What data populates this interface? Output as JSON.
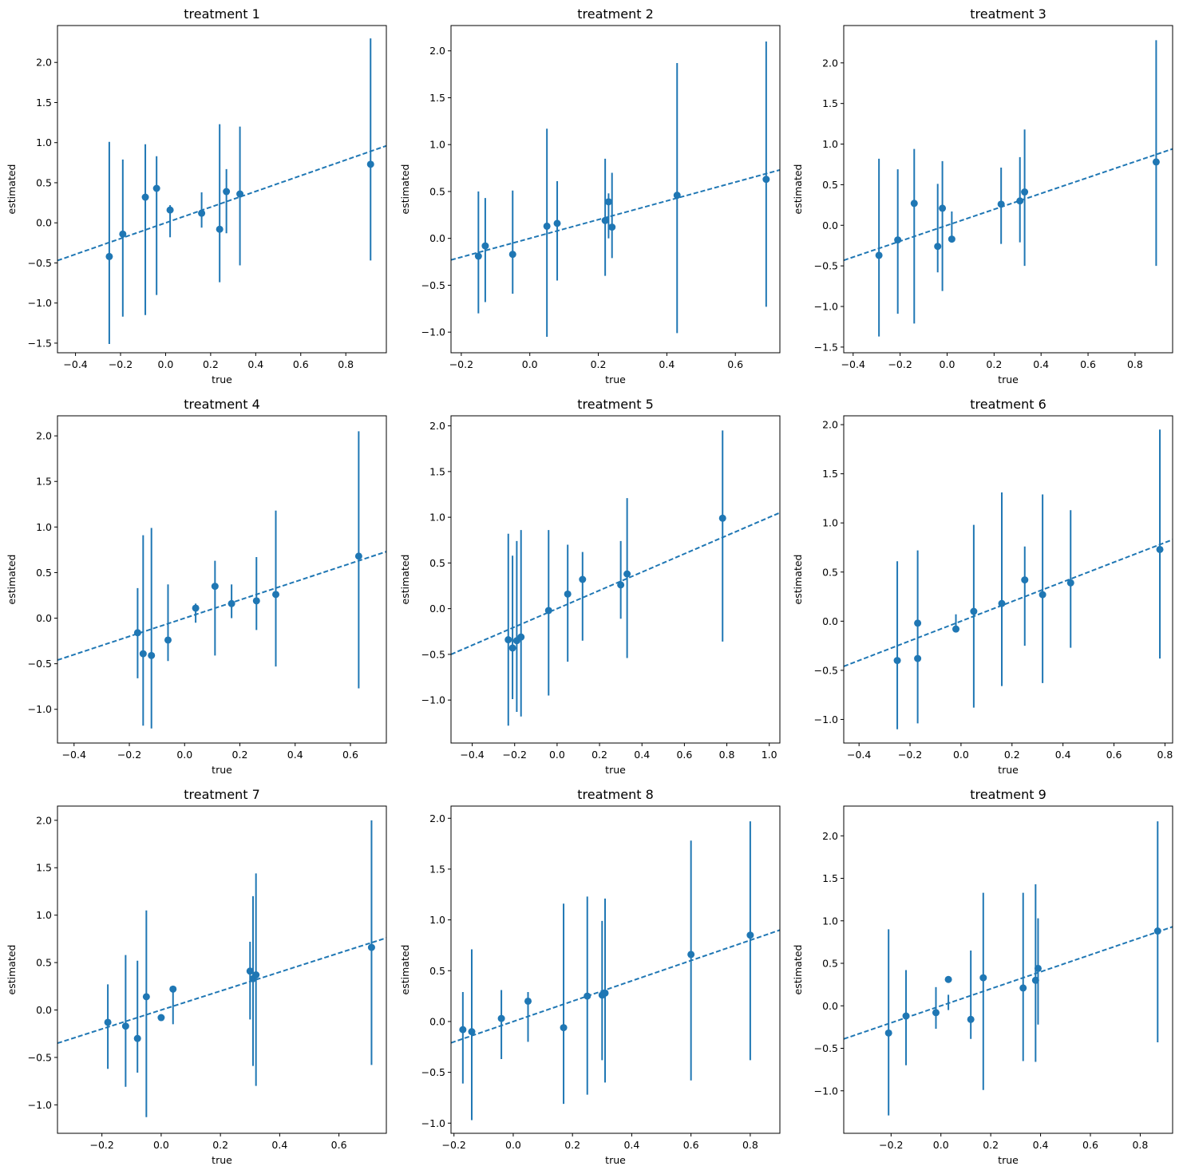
{
  "figure": {
    "width": 1477,
    "height": 1471
  },
  "colors": {
    "marker": "#1f77b4",
    "line": "#1f77b4",
    "axis": "#000000"
  },
  "chart_data": [
    {
      "type": "scatter",
      "title": "treatment 1",
      "xlabel": "true",
      "ylabel": "estimated",
      "xlim": [
        -0.48,
        0.98
      ],
      "ylim": [
        -1.62,
        2.46
      ],
      "xticks": [
        -0.4,
        -0.2,
        0.0,
        0.2,
        0.4,
        0.6,
        0.8
      ],
      "yticks": [
        -1.5,
        -1.0,
        -0.5,
        0.0,
        0.5,
        1.0,
        1.5,
        2.0
      ],
      "fit_line": {
        "slope": 0.98,
        "intercept": 0.0,
        "style": "dashed"
      },
      "points": [
        {
          "x": -0.25,
          "y": -0.42,
          "lo": -1.51,
          "hi": 1.01
        },
        {
          "x": -0.19,
          "y": -0.14,
          "lo": -1.17,
          "hi": 0.79
        },
        {
          "x": -0.09,
          "y": 0.32,
          "lo": -1.15,
          "hi": 0.98
        },
        {
          "x": -0.04,
          "y": 0.43,
          "lo": -0.9,
          "hi": 0.83
        },
        {
          "x": 0.02,
          "y": 0.16,
          "lo": -0.18,
          "hi": 0.22
        },
        {
          "x": 0.16,
          "y": 0.12,
          "lo": -0.06,
          "hi": 0.38
        },
        {
          "x": 0.24,
          "y": -0.08,
          "lo": -0.74,
          "hi": 1.23
        },
        {
          "x": 0.27,
          "y": 0.39,
          "lo": -0.13,
          "hi": 0.67
        },
        {
          "x": 0.33,
          "y": 0.36,
          "lo": -0.53,
          "hi": 1.2
        },
        {
          "x": 0.91,
          "y": 0.73,
          "lo": -0.47,
          "hi": 2.3
        }
      ]
    },
    {
      "type": "scatter",
      "title": "treatment 2",
      "xlabel": "true",
      "ylabel": "estimated",
      "xlim": [
        -0.23,
        0.73
      ],
      "ylim": [
        -1.22,
        2.27
      ],
      "xticks": [
        -0.2,
        0.0,
        0.2,
        0.4,
        0.6
      ],
      "yticks": [
        -1.0,
        -0.5,
        0.0,
        0.5,
        1.0,
        1.5,
        2.0
      ],
      "fit_line": {
        "slope": 1.0,
        "intercept": 0.0,
        "style": "dashed"
      },
      "points": [
        {
          "x": -0.15,
          "y": -0.19,
          "lo": -0.8,
          "hi": 0.5
        },
        {
          "x": -0.13,
          "y": -0.08,
          "lo": -0.68,
          "hi": 0.43
        },
        {
          "x": -0.05,
          "y": -0.17,
          "lo": -0.59,
          "hi": 0.51
        },
        {
          "x": 0.05,
          "y": 0.13,
          "lo": -1.05,
          "hi": 1.17
        },
        {
          "x": 0.08,
          "y": 0.16,
          "lo": -0.45,
          "hi": 0.61
        },
        {
          "x": 0.22,
          "y": 0.19,
          "lo": -0.4,
          "hi": 0.85
        },
        {
          "x": 0.23,
          "y": 0.39,
          "lo": 0.0,
          "hi": 0.48
        },
        {
          "x": 0.24,
          "y": 0.12,
          "lo": -0.21,
          "hi": 0.7
        },
        {
          "x": 0.43,
          "y": 0.46,
          "lo": -1.01,
          "hi": 1.87
        },
        {
          "x": 0.69,
          "y": 0.63,
          "lo": -0.73,
          "hi": 2.1
        }
      ]
    },
    {
      "type": "scatter",
      "title": "treatment 3",
      "xlabel": "true",
      "ylabel": "estimated",
      "xlim": [
        -0.44,
        0.96
      ],
      "ylim": [
        -1.57,
        2.46
      ],
      "xticks": [
        -0.4,
        -0.2,
        0.0,
        0.2,
        0.4,
        0.6,
        0.8
      ],
      "yticks": [
        -1.5,
        -1.0,
        -0.5,
        0.0,
        0.5,
        1.0,
        1.5,
        2.0
      ],
      "fit_line": {
        "slope": 0.98,
        "intercept": 0.0,
        "style": "dashed"
      },
      "points": [
        {
          "x": -0.29,
          "y": -0.37,
          "lo": -1.37,
          "hi": 0.82
        },
        {
          "x": -0.21,
          "y": -0.18,
          "lo": -1.09,
          "hi": 0.69
        },
        {
          "x": -0.14,
          "y": 0.27,
          "lo": -1.21,
          "hi": 0.94
        },
        {
          "x": -0.04,
          "y": -0.26,
          "lo": -0.58,
          "hi": 0.51
        },
        {
          "x": -0.02,
          "y": 0.21,
          "lo": -0.81,
          "hi": 0.79
        },
        {
          "x": 0.02,
          "y": -0.17,
          "lo": -0.17,
          "hi": 0.17
        },
        {
          "x": 0.23,
          "y": 0.26,
          "lo": -0.23,
          "hi": 0.71
        },
        {
          "x": 0.31,
          "y": 0.3,
          "lo": -0.21,
          "hi": 0.84
        },
        {
          "x": 0.33,
          "y": 0.41,
          "lo": -0.5,
          "hi": 1.18
        },
        {
          "x": 0.89,
          "y": 0.78,
          "lo": -0.5,
          "hi": 2.28
        }
      ]
    },
    {
      "type": "scatter",
      "title": "treatment 4",
      "xlabel": "true",
      "ylabel": "estimated",
      "xlim": [
        -0.46,
        0.73
      ],
      "ylim": [
        -1.37,
        2.22
      ],
      "xticks": [
        -0.4,
        -0.2,
        0.0,
        0.2,
        0.4,
        0.6
      ],
      "yticks": [
        -1.0,
        -0.5,
        0.0,
        0.5,
        1.0,
        1.5,
        2.0
      ],
      "fit_line": {
        "slope": 1.0,
        "intercept": 0.0,
        "style": "dashed"
      },
      "points": [
        {
          "x": -0.17,
          "y": -0.16,
          "lo": -0.66,
          "hi": 0.33
        },
        {
          "x": -0.15,
          "y": -0.39,
          "lo": -1.18,
          "hi": 0.91
        },
        {
          "x": -0.12,
          "y": -0.41,
          "lo": -1.21,
          "hi": 0.99
        },
        {
          "x": -0.06,
          "y": -0.24,
          "lo": -0.47,
          "hi": 0.37
        },
        {
          "x": 0.04,
          "y": 0.11,
          "lo": -0.05,
          "hi": 0.16
        },
        {
          "x": 0.11,
          "y": 0.35,
          "lo": -0.41,
          "hi": 0.63
        },
        {
          "x": 0.17,
          "y": 0.16,
          "lo": 0.0,
          "hi": 0.37
        },
        {
          "x": 0.26,
          "y": 0.19,
          "lo": -0.13,
          "hi": 0.67
        },
        {
          "x": 0.33,
          "y": 0.26,
          "lo": -0.53,
          "hi": 1.18
        },
        {
          "x": 0.63,
          "y": 0.68,
          "lo": -0.77,
          "hi": 2.05
        }
      ]
    },
    {
      "type": "scatter",
      "title": "treatment 5",
      "xlabel": "true",
      "ylabel": "estimated",
      "xlim": [
        -0.5,
        1.05
      ],
      "ylim": [
        -1.47,
        2.11
      ],
      "xticks": [
        -0.4,
        -0.2,
        0.0,
        0.2,
        0.4,
        0.6,
        0.8,
        1.0
      ],
      "yticks": [
        -1.0,
        -0.5,
        0.0,
        0.5,
        1.0,
        1.5,
        2.0
      ],
      "fit_line": {
        "slope": 1.0,
        "intercept": 0.0,
        "style": "dashed"
      },
      "points": [
        {
          "x": -0.23,
          "y": -0.34,
          "lo": -1.28,
          "hi": 0.82
        },
        {
          "x": -0.21,
          "y": -0.43,
          "lo": -0.99,
          "hi": 0.58
        },
        {
          "x": -0.19,
          "y": -0.35,
          "lo": -1.13,
          "hi": 0.74
        },
        {
          "x": -0.17,
          "y": -0.31,
          "lo": -1.18,
          "hi": 0.86
        },
        {
          "x": -0.04,
          "y": -0.02,
          "lo": -0.95,
          "hi": 0.86
        },
        {
          "x": 0.05,
          "y": 0.16,
          "lo": -0.58,
          "hi": 0.7
        },
        {
          "x": 0.12,
          "y": 0.32,
          "lo": -0.35,
          "hi": 0.62
        },
        {
          "x": 0.3,
          "y": 0.26,
          "lo": -0.11,
          "hi": 0.74
        },
        {
          "x": 0.33,
          "y": 0.38,
          "lo": -0.54,
          "hi": 1.21
        },
        {
          "x": 0.78,
          "y": 0.99,
          "lo": -0.36,
          "hi": 1.95
        }
      ]
    },
    {
      "type": "scatter",
      "title": "treatment 6",
      "xlabel": "true",
      "ylabel": "estimated",
      "xlim": [
        -0.46,
        0.83
      ],
      "ylim": [
        -1.24,
        2.09
      ],
      "xticks": [
        -0.4,
        -0.2,
        0.0,
        0.2,
        0.4,
        0.6,
        0.8
      ],
      "yticks": [
        -1.0,
        -0.5,
        0.0,
        0.5,
        1.0,
        1.5,
        2.0
      ],
      "fit_line": {
        "slope": 1.0,
        "intercept": 0.0,
        "style": "dashed"
      },
      "points": [
        {
          "x": -0.25,
          "y": -0.4,
          "lo": -1.1,
          "hi": 0.61
        },
        {
          "x": -0.17,
          "y": -0.02,
          "lo": -0.01,
          "hi": 0.72
        },
        {
          "x": -0.17,
          "y": -0.38,
          "lo": -1.04,
          "hi": 0.0
        },
        {
          "x": -0.02,
          "y": -0.08,
          "lo": -0.08,
          "hi": 0.07
        },
        {
          "x": 0.05,
          "y": 0.1,
          "lo": -0.88,
          "hi": 0.98
        },
        {
          "x": 0.16,
          "y": 0.18,
          "lo": -0.66,
          "hi": 1.31
        },
        {
          "x": 0.25,
          "y": 0.42,
          "lo": -0.25,
          "hi": 0.76
        },
        {
          "x": 0.32,
          "y": 0.27,
          "lo": -0.63,
          "hi": 1.29
        },
        {
          "x": 0.43,
          "y": 0.39,
          "lo": -0.27,
          "hi": 1.13
        },
        {
          "x": 0.78,
          "y": 0.73,
          "lo": -0.38,
          "hi": 1.95
        }
      ]
    },
    {
      "type": "scatter",
      "title": "treatment 7",
      "xlabel": "true",
      "ylabel": "estimated",
      "xlim": [
        -0.35,
        0.76
      ],
      "ylim": [
        -1.3,
        2.15
      ],
      "xticks": [
        -0.2,
        0.0,
        0.2,
        0.4,
        0.6
      ],
      "yticks": [
        -1.0,
        -0.5,
        0.0,
        0.5,
        1.0,
        1.5,
        2.0
      ],
      "fit_line": {
        "slope": 1.0,
        "intercept": 0.0,
        "style": "dashed"
      },
      "points": [
        {
          "x": -0.18,
          "y": -0.13,
          "lo": -0.62,
          "hi": 0.27
        },
        {
          "x": -0.12,
          "y": -0.17,
          "lo": -0.81,
          "hi": 0.58
        },
        {
          "x": -0.08,
          "y": -0.3,
          "lo": -0.66,
          "hi": 0.52
        },
        {
          "x": -0.05,
          "y": 0.14,
          "lo": -1.13,
          "hi": 1.05
        },
        {
          "x": 0.0,
          "y": -0.08,
          "lo": -0.08,
          "hi": -0.08
        },
        {
          "x": 0.04,
          "y": 0.22,
          "lo": -0.15,
          "hi": 0.22
        },
        {
          "x": 0.3,
          "y": 0.41,
          "lo": -0.1,
          "hi": 0.72
        },
        {
          "x": 0.31,
          "y": 0.33,
          "lo": -0.59,
          "hi": 1.2
        },
        {
          "x": 0.32,
          "y": 0.37,
          "lo": -0.8,
          "hi": 1.44
        },
        {
          "x": 0.71,
          "y": 0.66,
          "lo": -0.58,
          "hi": 2.0
        }
      ]
    },
    {
      "type": "scatter",
      "title": "treatment 8",
      "xlabel": "true",
      "ylabel": "estimated",
      "xlim": [
        -0.21,
        0.9
      ],
      "ylim": [
        -1.1,
        2.12
      ],
      "xticks": [
        -0.2,
        0.0,
        0.2,
        0.4,
        0.6,
        0.8
      ],
      "yticks": [
        -1.0,
        -0.5,
        0.0,
        0.5,
        1.0,
        1.5,
        2.0
      ],
      "fit_line": {
        "slope": 1.0,
        "intercept": 0.0,
        "style": "dashed"
      },
      "points": [
        {
          "x": -0.17,
          "y": -0.08,
          "lo": -0.61,
          "hi": 0.29
        },
        {
          "x": -0.14,
          "y": -0.1,
          "lo": -0.97,
          "hi": 0.71
        },
        {
          "x": -0.04,
          "y": 0.03,
          "lo": -0.37,
          "hi": 0.31
        },
        {
          "x": 0.05,
          "y": 0.2,
          "lo": -0.2,
          "hi": 0.29
        },
        {
          "x": 0.17,
          "y": -0.06,
          "lo": -0.81,
          "hi": 1.16
        },
        {
          "x": 0.25,
          "y": 0.25,
          "lo": -0.72,
          "hi": 1.23
        },
        {
          "x": 0.3,
          "y": 0.26,
          "lo": -0.38,
          "hi": 0.99
        },
        {
          "x": 0.31,
          "y": 0.28,
          "lo": -0.6,
          "hi": 1.21
        },
        {
          "x": 0.6,
          "y": 0.66,
          "lo": -0.58,
          "hi": 1.78
        },
        {
          "x": 0.8,
          "y": 0.85,
          "lo": -0.38,
          "hi": 1.97
        }
      ]
    },
    {
      "type": "scatter",
      "title": "treatment 9",
      "xlabel": "true",
      "ylabel": "estimated",
      "xlim": [
        -0.39,
        0.93
      ],
      "ylim": [
        -1.5,
        2.35
      ],
      "xticks": [
        -0.2,
        0.0,
        0.2,
        0.4,
        0.6,
        0.8
      ],
      "yticks": [
        -1.0,
        -0.5,
        0.0,
        0.5,
        1.0,
        1.5,
        2.0
      ],
      "fit_line": {
        "slope": 1.0,
        "intercept": 0.0,
        "style": "dashed"
      },
      "points": [
        {
          "x": -0.21,
          "y": -0.32,
          "lo": -1.29,
          "hi": 0.9
        },
        {
          "x": -0.14,
          "y": -0.12,
          "lo": -0.7,
          "hi": 0.42
        },
        {
          "x": -0.02,
          "y": -0.08,
          "lo": -0.27,
          "hi": 0.22
        },
        {
          "x": 0.03,
          "y": 0.31,
          "lo": -0.05,
          "hi": 0.13
        },
        {
          "x": 0.12,
          "y": -0.16,
          "lo": -0.39,
          "hi": 0.65
        },
        {
          "x": 0.17,
          "y": 0.33,
          "lo": -0.99,
          "hi": 1.33
        },
        {
          "x": 0.33,
          "y": 0.21,
          "lo": -0.65,
          "hi": 1.33
        },
        {
          "x": 0.38,
          "y": 0.3,
          "lo": -0.66,
          "hi": 1.43
        },
        {
          "x": 0.39,
          "y": 0.44,
          "lo": -0.22,
          "hi": 1.03
        },
        {
          "x": 0.87,
          "y": 0.88,
          "lo": -0.43,
          "hi": 2.17
        }
      ]
    }
  ]
}
